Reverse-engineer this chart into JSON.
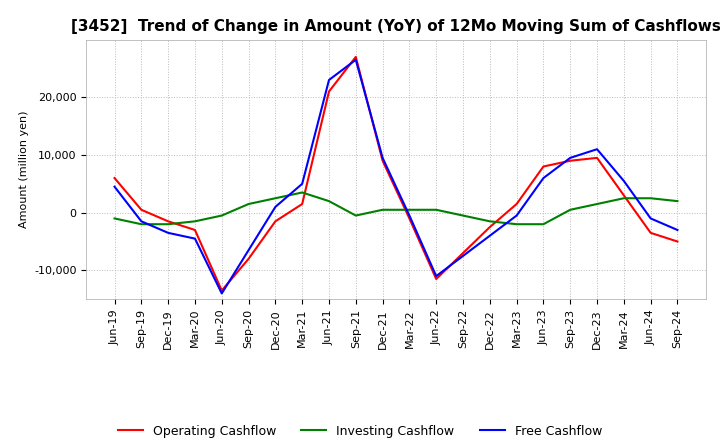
{
  "title": "[3452]  Trend of Change in Amount (YoY) of 12Mo Moving Sum of Cashflows",
  "ylabel": "Amount (million yen)",
  "x_labels": [
    "Jun-19",
    "Sep-19",
    "Dec-19",
    "Mar-20",
    "Jun-20",
    "Sep-20",
    "Dec-20",
    "Mar-21",
    "Jun-21",
    "Sep-21",
    "Dec-21",
    "Mar-22",
    "Jun-22",
    "Sep-22",
    "Dec-22",
    "Mar-23",
    "Jun-23",
    "Sep-23",
    "Dec-23",
    "Mar-24",
    "Jun-24",
    "Sep-24"
  ],
  "operating": [
    6000,
    500,
    -1500,
    -3000,
    -13500,
    -8000,
    -1500,
    1500,
    21000,
    27000,
    9000,
    -1000,
    -11500,
    -7000,
    -2500,
    1500,
    8000,
    9000,
    9500,
    3000,
    -3500,
    -5000
  ],
  "investing": [
    -1000,
    -2000,
    -2000,
    -1500,
    -500,
    1500,
    2500,
    3500,
    2000,
    -500,
    500,
    500,
    500,
    -500,
    -1500,
    -2000,
    -2000,
    500,
    1500,
    2500,
    2500,
    2000
  ],
  "free": [
    4500,
    -1500,
    -3500,
    -4500,
    -14000,
    -6500,
    1000,
    5000,
    23000,
    26500,
    9500,
    -500,
    -11000,
    -7500,
    -4000,
    -500,
    6000,
    9500,
    11000,
    5500,
    -1000,
    -3000
  ],
  "ylim": [
    -15000,
    30000
  ],
  "yticks": [
    -10000,
    0,
    10000,
    20000
  ],
  "operating_color": "#ff0000",
  "investing_color": "#008000",
  "free_color": "#0000ff",
  "background_color": "#ffffff",
  "grid_color": "#bbbbbb",
  "title_fontsize": 11,
  "axis_fontsize": 8,
  "legend_fontsize": 9,
  "line_width": 1.5
}
